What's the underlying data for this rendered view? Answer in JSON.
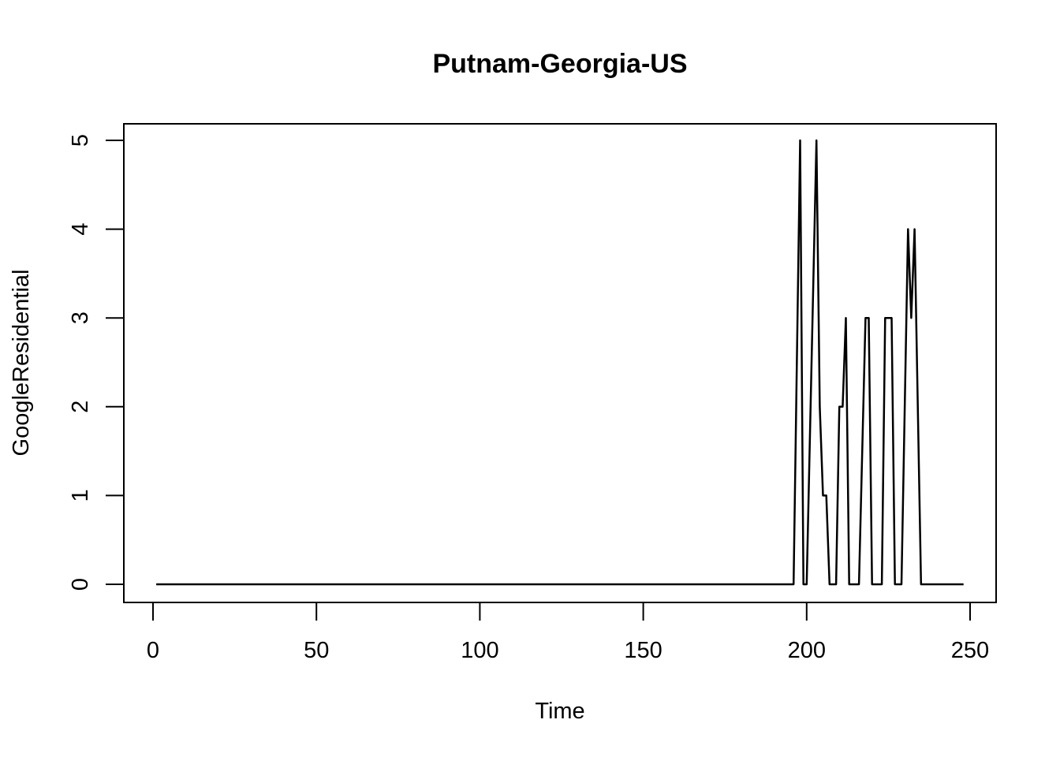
{
  "chart_data": {
    "type": "line",
    "title": "Putnam-Georgia-US",
    "xlabel": "Time",
    "ylabel": "GoogleResidential",
    "xlim": [
      1,
      248
    ],
    "ylim": [
      0,
      5
    ],
    "x_ticks": [
      0,
      50,
      100,
      150,
      200,
      250
    ],
    "y_ticks": [
      0,
      1,
      2,
      3,
      4,
      5
    ],
    "grid": false,
    "legend": "none",
    "line_color": "#000000",
    "series": [
      {
        "x": [
          1,
          196,
          198,
          199,
          200,
          203,
          204,
          205,
          206,
          207,
          209,
          210,
          211,
          212,
          213,
          216,
          218,
          219,
          220,
          221,
          223,
          224,
          225,
          226,
          227,
          229,
          231,
          232,
          233,
          234,
          235,
          248
        ],
        "values": [
          0,
          0,
          5,
          0,
          0,
          5,
          2,
          1,
          1,
          0,
          0,
          2,
          2,
          3,
          0,
          0,
          3,
          3,
          0,
          0,
          0,
          3,
          3,
          3,
          0,
          0,
          4,
          3,
          4,
          2,
          0,
          0
        ]
      }
    ]
  }
}
